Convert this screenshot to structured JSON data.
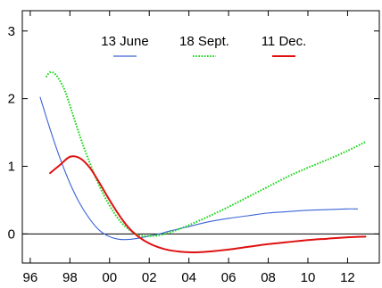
{
  "chart_data": {
    "type": "line",
    "title": "",
    "xlabel": "",
    "ylabel": "",
    "xlim": [
      1995.6,
      2013.6
    ],
    "ylim": [
      -0.43,
      3.3
    ],
    "x_ticks": [
      1996,
      1998,
      2000,
      2002,
      2004,
      2006,
      2008,
      2010,
      2012
    ],
    "x_tick_labels": [
      "96",
      "98",
      "00",
      "02",
      "04",
      "06",
      "08",
      "10",
      "12"
    ],
    "y_ticks": [
      0,
      1,
      2,
      3
    ],
    "y_tick_labels": [
      "0",
      "1",
      "2",
      "3"
    ],
    "zero_line": true,
    "grid": false,
    "legend_position": "top-center",
    "series": [
      {
        "name": "13 June",
        "color": "#3a63d6",
        "style": "solid",
        "x": [
          1996.5,
          1997,
          1997.5,
          1998,
          1998.5,
          1999,
          1999.5,
          2000,
          2000.5,
          2001,
          2001.5,
          2002,
          2002.5,
          2003,
          2004,
          2005,
          2006,
          2007,
          2008,
          2009,
          2010,
          2011,
          2012,
          2012.5
        ],
        "y": [
          2.02,
          1.55,
          1.12,
          0.75,
          0.45,
          0.22,
          0.05,
          -0.04,
          -0.08,
          -0.08,
          -0.06,
          -0.03,
          0.0,
          0.04,
          0.11,
          0.18,
          0.23,
          0.27,
          0.31,
          0.33,
          0.35,
          0.36,
          0.37,
          0.37
        ]
      },
      {
        "name": "18 Sept.",
        "color": "#19d619",
        "style": "dotted",
        "x": [
          1996.8,
          1997,
          1997.3,
          1997.7,
          1998,
          1998.5,
          1999,
          1999.5,
          2000,
          2000.5,
          2001,
          2001.5,
          2002,
          2002.5,
          2003,
          2003.5,
          2004,
          2005,
          2006,
          2007,
          2008,
          2009,
          2010,
          2011,
          2012,
          2012.9
        ],
        "y": [
          2.32,
          2.39,
          2.35,
          2.15,
          1.9,
          1.45,
          1.05,
          0.7,
          0.42,
          0.2,
          0.06,
          -0.02,
          -0.03,
          -0.02,
          0.02,
          0.07,
          0.13,
          0.26,
          0.4,
          0.55,
          0.7,
          0.85,
          0.98,
          1.1,
          1.23,
          1.36
        ]
      },
      {
        "name": "11 Dec.",
        "color": "#e01010",
        "style": "solid",
        "x": [
          1997,
          1997.5,
          1998,
          1998.5,
          1999,
          1999.5,
          2000,
          2000.5,
          2001,
          2001.5,
          2002,
          2002.5,
          2003,
          2003.5,
          2004,
          2004.5,
          2005,
          2006,
          2007,
          2008,
          2009,
          2010,
          2011,
          2012,
          2012.9
        ],
        "y": [
          0.9,
          1.02,
          1.14,
          1.12,
          0.98,
          0.75,
          0.5,
          0.27,
          0.08,
          -0.05,
          -0.14,
          -0.2,
          -0.24,
          -0.26,
          -0.27,
          -0.27,
          -0.26,
          -0.23,
          -0.19,
          -0.15,
          -0.12,
          -0.09,
          -0.07,
          -0.05,
          -0.04
        ]
      }
    ]
  }
}
